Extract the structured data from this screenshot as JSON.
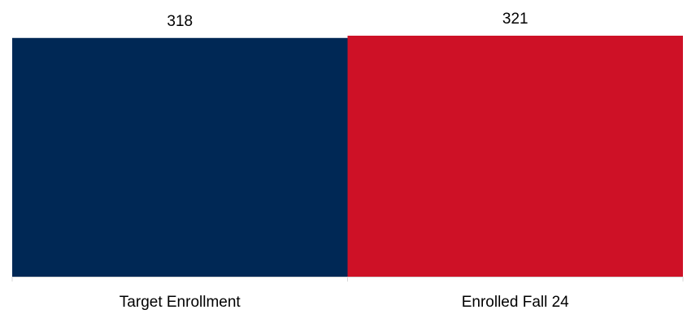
{
  "chart_data": {
    "type": "bar",
    "categories": [
      "Target Enrollment",
      "Enrolled Fall 24"
    ],
    "values": [
      318,
      321
    ],
    "colors": [
      "#002855",
      "#CE1126"
    ],
    "data_labels": [
      "318",
      "321"
    ],
    "ylim": [
      0,
      321
    ],
    "grid": false,
    "legend": "none",
    "title": "",
    "xlabel": "",
    "ylabel": ""
  }
}
